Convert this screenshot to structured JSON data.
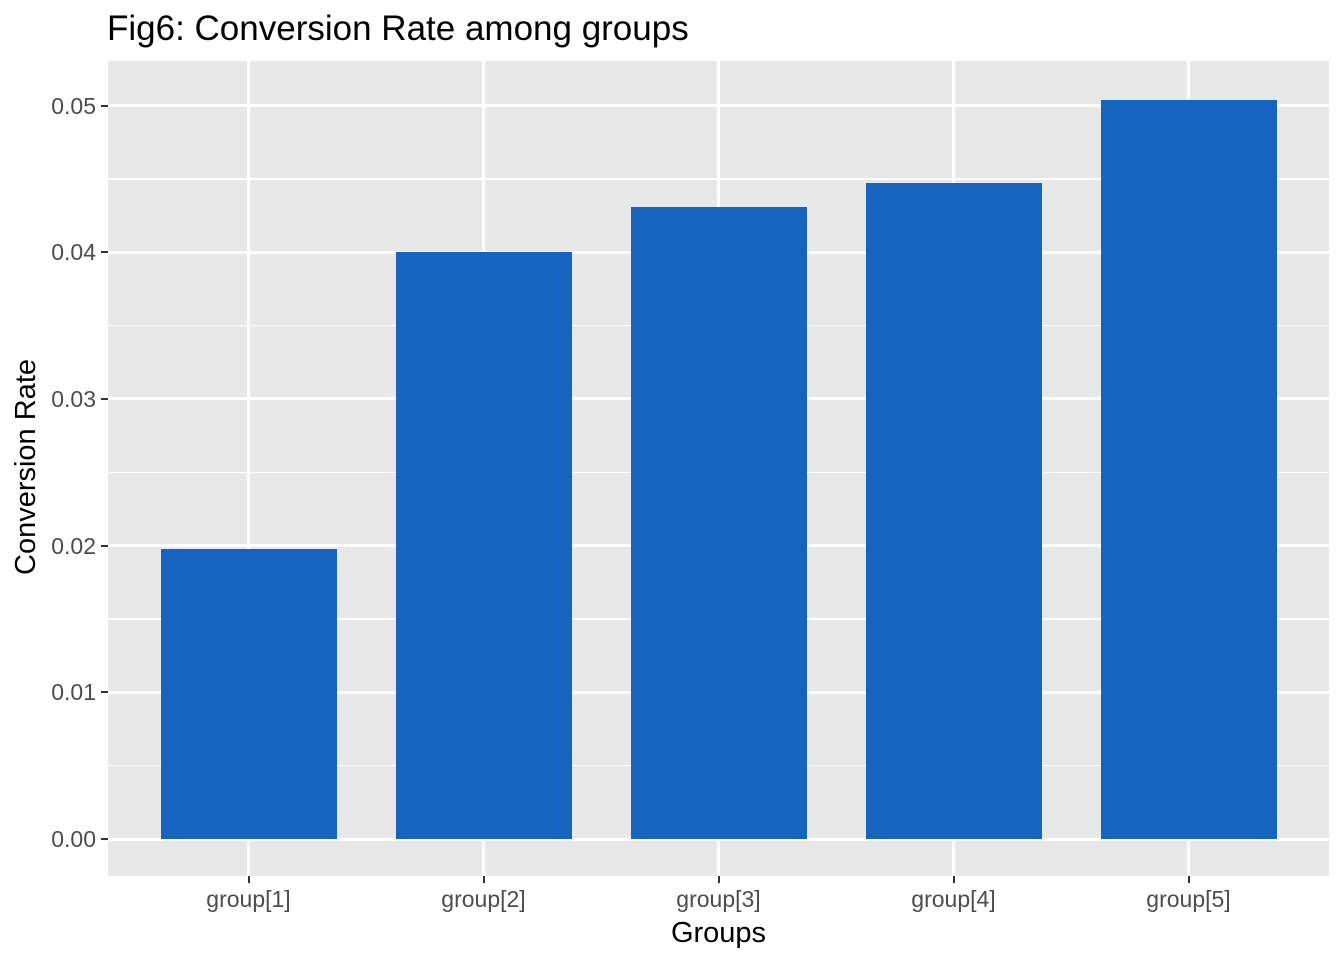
{
  "chart_data": {
    "type": "bar",
    "title": "Fig6: Conversion Rate among groups",
    "xlabel": "Groups",
    "ylabel": "Conversion Rate",
    "categories": [
      "group[1]",
      "group[2]",
      "group[3]",
      "group[4]",
      "group[5]"
    ],
    "values": [
      0.0198,
      0.04,
      0.0431,
      0.0447,
      0.0504
    ],
    "yticks": [
      0.0,
      0.01,
      0.02,
      0.03,
      0.04,
      0.05
    ],
    "ytick_labels": [
      "0.00",
      "0.01",
      "0.02",
      "0.03",
      "0.04",
      "0.05"
    ],
    "minor_yticks": [
      0.005,
      0.015,
      0.025,
      0.035,
      0.045
    ],
    "ylim": [
      -0.0025,
      0.053
    ],
    "grid": "major and minor horizontal white gridlines, vertical major gridlines at category centers",
    "legend_position": "none",
    "colors": {
      "bar_fill": "#1565C0",
      "panel_background": "#E8E8E8",
      "gridline": "#FFFFFF",
      "tick_label": "#4D4D4D",
      "tick_mark": "#333333",
      "text": "#000000",
      "figure_background": "#FFFFFF"
    }
  }
}
